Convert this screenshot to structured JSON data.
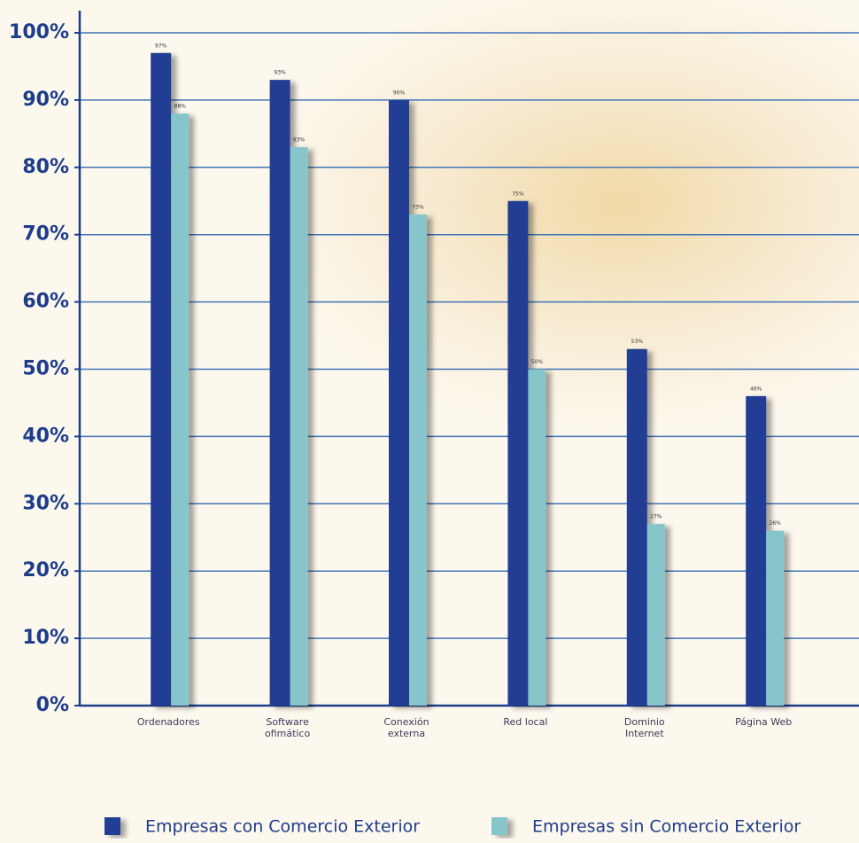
{
  "chart_data": {
    "type": "bar",
    "categories": [
      "Ordenadores",
      "Software ofimático",
      "Conexión externa",
      "Red local",
      "Dominio Internet",
      "Página Web"
    ],
    "series": [
      {
        "name": "Empresas con Comercio Exterior",
        "color": "#203c94",
        "values": [
          97,
          93,
          90,
          75,
          53,
          46
        ],
        "value_labels": [
          "97%",
          "93%",
          "90%",
          "75%",
          "53%",
          "46%"
        ]
      },
      {
        "name": "Empresas sin Comercio Exterior",
        "color": "#86c6cb",
        "values": [
          88,
          83,
          73,
          50,
          27,
          26
        ],
        "value_labels": [
          "88%",
          "83%",
          "73%",
          "50%",
          "27%",
          "26%"
        ]
      }
    ],
    "ylim": [
      0,
      100
    ],
    "yticks": [
      {
        "value": 0,
        "label": "0%"
      },
      {
        "value": 10,
        "label": "10%"
      },
      {
        "value": 20,
        "label": "20%"
      },
      {
        "value": 30,
        "label": "30%"
      },
      {
        "value": 40,
        "label": "40%"
      },
      {
        "value": 50,
        "label": "50%"
      },
      {
        "value": 60,
        "label": "60%"
      },
      {
        "value": 70,
        "label": "70%"
      },
      {
        "value": 80,
        "label": "80%"
      },
      {
        "value": 90,
        "label": "90%"
      },
      {
        "value": 100,
        "label": "100%"
      }
    ],
    "grid": true
  }
}
